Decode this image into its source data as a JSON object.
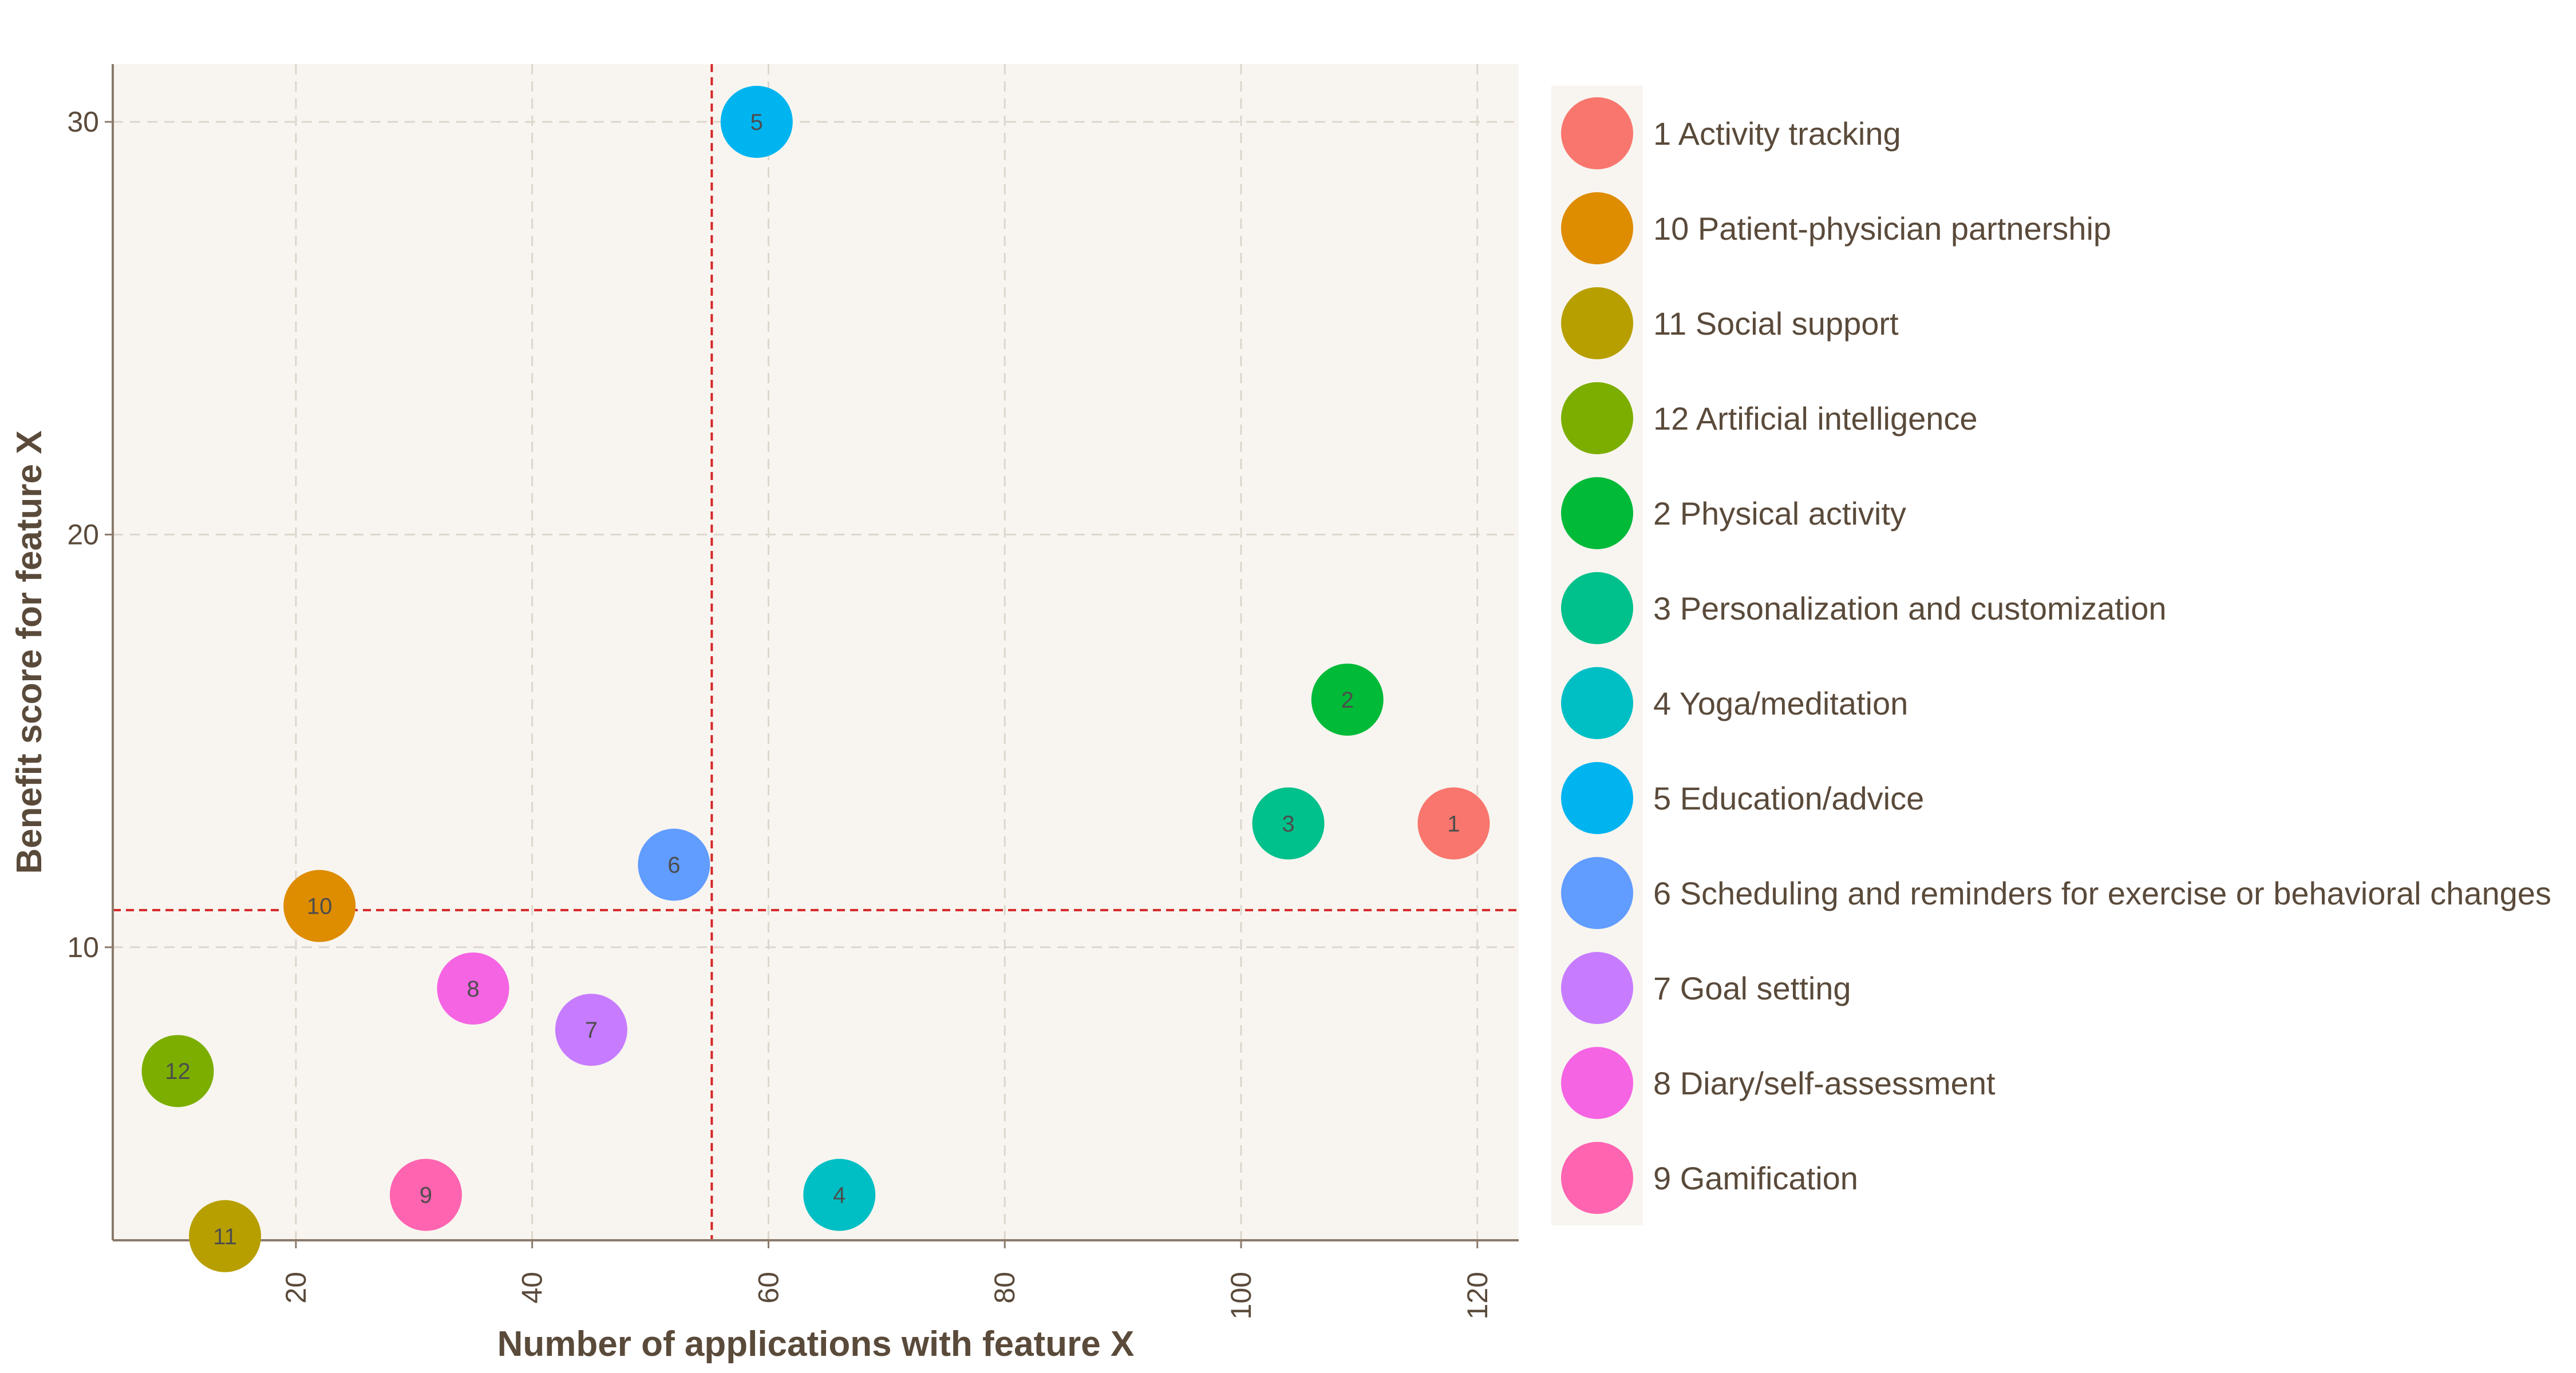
{
  "chart_data": {
    "type": "scatter",
    "title": "",
    "xlabel": "Number of applications with feature X",
    "ylabel": "Benefit score for feature X",
    "xlim": [
      4.5,
      123.5
    ],
    "ylim": [
      2.9,
      31.4
    ],
    "x_ticks": [
      20,
      40,
      60,
      80,
      100,
      120
    ],
    "y_ticks": [
      10,
      20,
      30
    ],
    "grid": true,
    "legend_position": "right",
    "reference_lines": {
      "x": 55.2,
      "y": 10.9,
      "color": "#d62728",
      "style": "dashed"
    },
    "series": [
      {
        "label": "1",
        "name": "1 Activity tracking",
        "x": 118,
        "y": 13,
        "color": "#F8766D"
      },
      {
        "label": "2",
        "name": "2 Physical activity",
        "x": 109,
        "y": 16,
        "color": "#00BA38"
      },
      {
        "label": "3",
        "name": "3 Personalization and customization",
        "x": 104,
        "y": 13,
        "color": "#00C08B"
      },
      {
        "label": "4",
        "name": "4 Yoga/meditation",
        "x": 66,
        "y": 4,
        "color": "#00BFC4"
      },
      {
        "label": "5",
        "name": "5 Education/advice",
        "x": 59,
        "y": 30,
        "color": "#00B4F0"
      },
      {
        "label": "6",
        "name": "6 Scheduling and reminders for exercise or behavioral changes",
        "x": 52,
        "y": 12,
        "color": "#619CFF"
      },
      {
        "label": "7",
        "name": "7 Goal setting",
        "x": 45,
        "y": 8,
        "color": "#C77CFF"
      },
      {
        "label": "8",
        "name": "8 Diary/self-assessment",
        "x": 35,
        "y": 9,
        "color": "#F564E3"
      },
      {
        "label": "9",
        "name": "9 Gamification",
        "x": 31,
        "y": 4,
        "color": "#FF64B0"
      },
      {
        "label": "10",
        "name": "10 Patient-physician partnership",
        "x": 22,
        "y": 11,
        "color": "#DE8C00"
      },
      {
        "label": "11",
        "name": "11 Social support",
        "x": 14,
        "y": 3,
        "color": "#B79F00"
      },
      {
        "label": "12",
        "name": "12 Artificial intelligence",
        "x": 10,
        "y": 7,
        "color": "#7CAE00"
      }
    ],
    "legend_order": [
      "1",
      "10",
      "11",
      "12",
      "2",
      "3",
      "4",
      "5",
      "6",
      "7",
      "8",
      "9"
    ]
  },
  "colors": {
    "panel_background": "#f8f5f0",
    "grid": "#dcd6cc",
    "axis": "#8a7a6a",
    "text": "#5a4a3a"
  }
}
